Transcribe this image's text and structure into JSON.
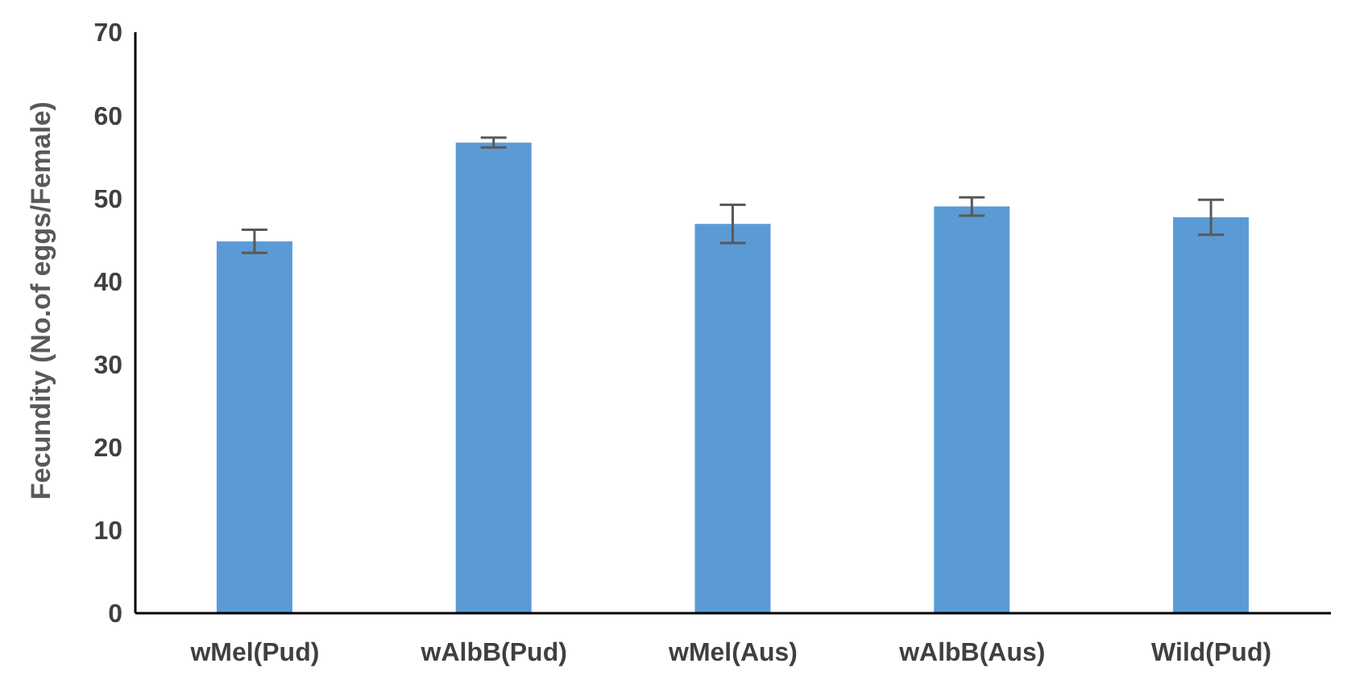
{
  "chart_data": {
    "type": "bar",
    "ylabel": "Fecundity (No.of eggs/Female)",
    "categories": [
      "wMel(Pud)",
      "wAlbB(Pud)",
      "wMel(Aus)",
      "wAlbB(Aus)",
      "Wild(Pud)"
    ],
    "values": [
      44.8,
      56.7,
      46.9,
      49.0,
      47.7
    ],
    "errors": [
      1.4,
      0.6,
      2.3,
      1.1,
      2.1
    ],
    "color": "#5b9bd5",
    "ylim": [
      0,
      70
    ],
    "yticks": [
      0,
      10,
      20,
      30,
      40,
      50,
      60,
      70
    ]
  }
}
